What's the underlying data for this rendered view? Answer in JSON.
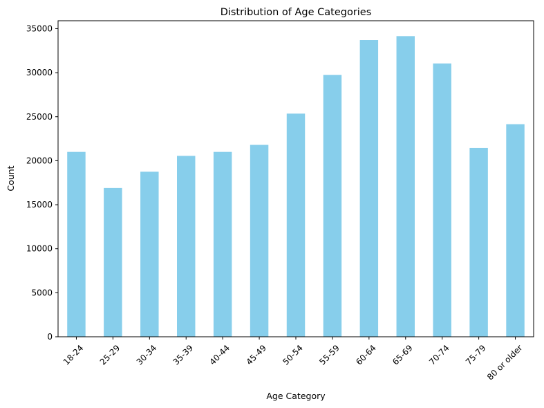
{
  "chart_data": {
    "type": "bar",
    "title": "Distribution of Age Categories",
    "xlabel": "Age Category",
    "ylabel": "Count",
    "categories": [
      "18-24",
      "25-29",
      "30-34",
      "35-39",
      "40-44",
      "45-49",
      "50-54",
      "55-59",
      "60-64",
      "65-69",
      "70-74",
      "75-79",
      "80 or older"
    ],
    "values": [
      21000,
      16900,
      18750,
      20550,
      21000,
      21800,
      25350,
      29750,
      33700,
      34150,
      31050,
      21450,
      24150
    ],
    "ylim": [
      0,
      35900
    ],
    "yticks": [
      "0",
      "5000",
      "10000",
      "15000",
      "20000",
      "25000",
      "30000",
      "35000"
    ],
    "ytick_values": [
      0,
      5000,
      10000,
      15000,
      20000,
      25000,
      30000,
      35000
    ],
    "bar_color": "#87ceeb",
    "grid": false,
    "legend": "none"
  }
}
